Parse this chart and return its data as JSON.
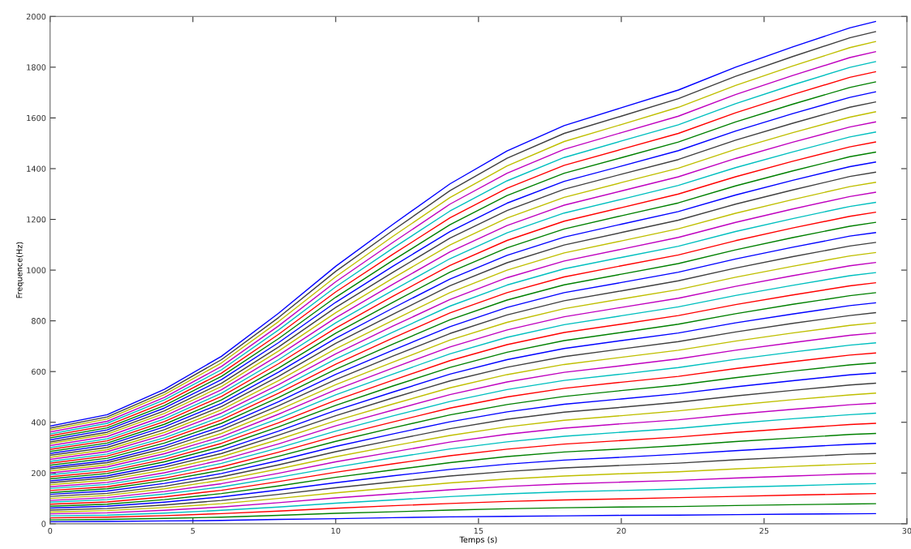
{
  "chart_data": {
    "type": "line",
    "xlabel": "Temps (s)",
    "ylabel": "Frequence(Hz)",
    "xlim": [
      0,
      30
    ],
    "xticks": [
      0,
      5,
      10,
      15,
      20,
      25,
      30
    ],
    "ylim": [
      0,
      2000
    ],
    "yticks": [
      0,
      200,
      400,
      600,
      800,
      1000,
      1200,
      1400,
      1600,
      1800,
      2000
    ],
    "marker": "none",
    "line_style": "solid",
    "x": [
      0,
      2,
      4,
      6,
      8,
      10,
      12,
      14,
      16,
      18,
      20,
      22,
      24,
      26,
      28,
      28.9
    ],
    "series": [
      {
        "color": "#0000ff",
        "values": [
          8,
          9,
          11,
          13,
          17,
          20,
          24,
          27,
          29,
          31,
          33,
          34,
          36,
          38,
          39,
          40
        ]
      },
      {
        "color": "#008000",
        "values": [
          15,
          17,
          21,
          26,
          33,
          41,
          47,
          54,
          59,
          63,
          66,
          68,
          72,
          75,
          78,
          79
        ]
      },
      {
        "color": "#ff0000",
        "values": [
          23,
          26,
          32,
          40,
          50,
          61,
          71,
          80,
          88,
          94,
          98,
          103,
          108,
          113,
          117,
          119
        ]
      },
      {
        "color": "#00bfbf",
        "values": [
          31,
          34,
          42,
          53,
          66,
          81,
          94,
          107,
          118,
          126,
          131,
          137,
          144,
          150,
          156,
          158
        ]
      },
      {
        "color": "#bf00bf",
        "values": [
          39,
          43,
          53,
          66,
          83,
          102,
          118,
          134,
          147,
          157,
          164,
          171,
          180,
          188,
          196,
          198
        ]
      },
      {
        "color": "#bfbf00",
        "values": [
          46,
          52,
          64,
          79,
          100,
          122,
          142,
          161,
          176,
          188,
          197,
          205,
          216,
          226,
          235,
          238
        ]
      },
      {
        "color": "#404040",
        "values": [
          54,
          60,
          74,
          92,
          116,
          142,
          165,
          188,
          206,
          220,
          230,
          239,
          252,
          263,
          274,
          277
        ]
      },
      {
        "color": "#0000ff",
        "values": [
          62,
          69,
          85,
          106,
          133,
          162,
          189,
          214,
          235,
          251,
          262,
          274,
          288,
          301,
          313,
          317
        ]
      },
      {
        "color": "#008000",
        "values": [
          69,
          77,
          95,
          119,
          149,
          183,
          212,
          241,
          265,
          283,
          295,
          308,
          324,
          338,
          352,
          356
        ]
      },
      {
        "color": "#ff0000",
        "values": [
          77,
          86,
          106,
          132,
          166,
          203,
          236,
          268,
          294,
          314,
          328,
          342,
          360,
          376,
          391,
          396
        ]
      },
      {
        "color": "#00bfbf",
        "values": [
          85,
          95,
          117,
          145,
          183,
          223,
          260,
          295,
          323,
          345,
          361,
          376,
          396,
          414,
          430,
          436
        ]
      },
      {
        "color": "#bf00bf",
        "values": [
          92,
          103,
          127,
          158,
          199,
          244,
          283,
          322,
          353,
          377,
          394,
          410,
          432,
          451,
          469,
          475
        ]
      },
      {
        "color": "#bfbf00",
        "values": [
          100,
          112,
          138,
          172,
          216,
          264,
          307,
          348,
          382,
          408,
          426,
          445,
          468,
          489,
          508,
          515
        ]
      },
      {
        "color": "#404040",
        "values": [
          108,
          120,
          148,
          185,
          232,
          284,
          330,
          375,
          412,
          440,
          459,
          479,
          504,
          526,
          547,
          554
        ]
      },
      {
        "color": "#0000ff",
        "values": [
          116,
          129,
          159,
          198,
          249,
          305,
          354,
          402,
          441,
          471,
          492,
          513,
          540,
          564,
          587,
          594
        ]
      },
      {
        "color": "#008000",
        "values": [
          123,
          138,
          170,
          211,
          266,
          325,
          378,
          429,
          470,
          502,
          525,
          547,
          576,
          602,
          626,
          634
        ]
      },
      {
        "color": "#ff0000",
        "values": [
          131,
          146,
          180,
          224,
          282,
          345,
          401,
          456,
          500,
          534,
          558,
          581,
          612,
          639,
          665,
          673
        ]
      },
      {
        "color": "#00bfbf",
        "values": [
          139,
          155,
          191,
          238,
          299,
          365,
          425,
          482,
          529,
          565,
          590,
          616,
          648,
          677,
          704,
          713
        ]
      },
      {
        "color": "#bf00bf",
        "values": [
          146,
          163,
          201,
          251,
          315,
          386,
          448,
          509,
          559,
          597,
          623,
          650,
          684,
          714,
          743,
          752
        ]
      },
      {
        "color": "#bfbf00",
        "values": [
          154,
          172,
          212,
          264,
          332,
          406,
          472,
          536,
          588,
          628,
          656,
          684,
          720,
          752,
          782,
          792
        ]
      },
      {
        "color": "#404040",
        "values": [
          162,
          181,
          223,
          277,
          349,
          426,
          496,
          563,
          617,
          659,
          689,
          718,
          756,
          790,
          821,
          832
        ]
      },
      {
        "color": "#0000ff",
        "values": [
          169,
          189,
          233,
          290,
          365,
          447,
          519,
          590,
          647,
          691,
          722,
          752,
          792,
          827,
          860,
          871
        ]
      },
      {
        "color": "#008000",
        "values": [
          177,
          198,
          244,
          304,
          382,
          467,
          543,
          616,
          676,
          722,
          754,
          787,
          828,
          865,
          899,
          911
        ]
      },
      {
        "color": "#ff0000",
        "values": [
          185,
          206,
          254,
          317,
          398,
          487,
          566,
          643,
          706,
          754,
          787,
          821,
          864,
          902,
          938,
          950
        ]
      },
      {
        "color": "#00bfbf",
        "values": [
          193,
          215,
          265,
          330,
          415,
          508,
          590,
          670,
          735,
          785,
          820,
          855,
          900,
          940,
          978,
          990
        ]
      },
      {
        "color": "#bf00bf",
        "values": [
          200,
          224,
          276,
          343,
          432,
          528,
          614,
          697,
          764,
          816,
          853,
          889,
          936,
          978,
          1017,
          1030
        ]
      },
      {
        "color": "#bfbf00",
        "values": [
          208,
          232,
          286,
          356,
          448,
          548,
          637,
          724,
          794,
          848,
          886,
          923,
          972,
          1015,
          1056,
          1069
        ]
      },
      {
        "color": "#404040",
        "values": [
          216,
          241,
          297,
          370,
          465,
          568,
          661,
          750,
          823,
          879,
          918,
          958,
          1008,
          1053,
          1095,
          1109
        ]
      },
      {
        "color": "#0000ff",
        "values": [
          223,
          249,
          307,
          383,
          481,
          589,
          684,
          777,
          853,
          911,
          951,
          992,
          1044,
          1090,
          1134,
          1148
        ]
      },
      {
        "color": "#008000",
        "values": [
          231,
          258,
          318,
          396,
          498,
          609,
          708,
          804,
          882,
          942,
          984,
          1026,
          1080,
          1128,
          1173,
          1188
        ]
      },
      {
        "color": "#ff0000",
        "values": [
          239,
          267,
          329,
          409,
          515,
          629,
          732,
          831,
          911,
          973,
          1017,
          1060,
          1116,
          1166,
          1212,
          1228
        ]
      },
      {
        "color": "#00bfbf",
        "values": [
          246,
          275,
          339,
          422,
          531,
          650,
          755,
          858,
          941,
          1005,
          1050,
          1094,
          1152,
          1203,
          1251,
          1267
        ]
      },
      {
        "color": "#bf00bf",
        "values": [
          254,
          284,
          350,
          436,
          548,
          670,
          779,
          884,
          970,
          1036,
          1082,
          1129,
          1188,
          1241,
          1290,
          1307
        ]
      },
      {
        "color": "#bfbf00",
        "values": [
          262,
          292,
          360,
          449,
          564,
          690,
          802,
          911,
          1000,
          1068,
          1115,
          1163,
          1224,
          1278,
          1329,
          1346
        ]
      },
      {
        "color": "#404040",
        "values": [
          270,
          301,
          371,
          462,
          581,
          711,
          826,
          938,
          1029,
          1099,
          1148,
          1197,
          1260,
          1316,
          1369,
          1386
        ]
      },
      {
        "color": "#0000ff",
        "values": [
          277,
          310,
          382,
          475,
          598,
          731,
          850,
          965,
          1058,
          1130,
          1181,
          1231,
          1296,
          1354,
          1408,
          1426
        ]
      },
      {
        "color": "#008000",
        "values": [
          285,
          318,
          392,
          488,
          614,
          751,
          873,
          992,
          1088,
          1162,
          1214,
          1265,
          1332,
          1391,
          1447,
          1465
        ]
      },
      {
        "color": "#ff0000",
        "values": [
          293,
          327,
          403,
          502,
          631,
          771,
          897,
          1018,
          1117,
          1193,
          1246,
          1300,
          1368,
          1429,
          1486,
          1505
        ]
      },
      {
        "color": "#00bfbf",
        "values": [
          300,
          335,
          413,
          515,
          647,
          792,
          920,
          1045,
          1147,
          1225,
          1279,
          1334,
          1404,
          1466,
          1525,
          1544
        ]
      },
      {
        "color": "#bf00bf",
        "values": [
          308,
          344,
          424,
          528,
          664,
          812,
          944,
          1072,
          1176,
          1256,
          1312,
          1368,
          1440,
          1504,
          1564,
          1584
        ]
      },
      {
        "color": "#bfbf00",
        "values": [
          316,
          353,
          435,
          541,
          681,
          832,
          968,
          1099,
          1205,
          1287,
          1345,
          1402,
          1476,
          1542,
          1603,
          1624
        ]
      },
      {
        "color": "#404040",
        "values": [
          323,
          361,
          445,
          554,
          697,
          853,
          991,
          1126,
          1235,
          1319,
          1378,
          1436,
          1512,
          1579,
          1642,
          1663
        ]
      },
      {
        "color": "#0000ff",
        "values": [
          331,
          370,
          456,
          568,
          714,
          873,
          1015,
          1152,
          1264,
          1350,
          1410,
          1471,
          1548,
          1617,
          1681,
          1703
        ]
      },
      {
        "color": "#008000",
        "values": [
          339,
          378,
          466,
          581,
          730,
          893,
          1038,
          1179,
          1294,
          1382,
          1443,
          1505,
          1584,
          1654,
          1720,
          1742
        ]
      },
      {
        "color": "#ff0000",
        "values": [
          347,
          387,
          477,
          594,
          747,
          914,
          1062,
          1206,
          1323,
          1413,
          1476,
          1539,
          1620,
          1692,
          1760,
          1782
        ]
      },
      {
        "color": "#00bfbf",
        "values": [
          354,
          396,
          488,
          607,
          764,
          934,
          1086,
          1233,
          1352,
          1444,
          1509,
          1573,
          1656,
          1730,
          1799,
          1822
        ]
      },
      {
        "color": "#bf00bf",
        "values": [
          362,
          404,
          498,
          620,
          780,
          954,
          1109,
          1260,
          1382,
          1476,
          1542,
          1607,
          1692,
          1767,
          1838,
          1861
        ]
      },
      {
        "color": "#bfbf00",
        "values": [
          370,
          413,
          509,
          634,
          797,
          974,
          1133,
          1286,
          1411,
          1507,
          1574,
          1642,
          1728,
          1805,
          1877,
          1901
        ]
      },
      {
        "color": "#404040",
        "values": [
          377,
          421,
          519,
          647,
          813,
          995,
          1156,
          1313,
          1441,
          1539,
          1607,
          1676,
          1764,
          1842,
          1916,
          1940
        ]
      },
      {
        "color": "#0000ff",
        "values": [
          385,
          430,
          530,
          660,
          830,
          1015,
          1180,
          1340,
          1470,
          1570,
          1640,
          1710,
          1800,
          1880,
          1955,
          1980
        ]
      }
    ]
  }
}
